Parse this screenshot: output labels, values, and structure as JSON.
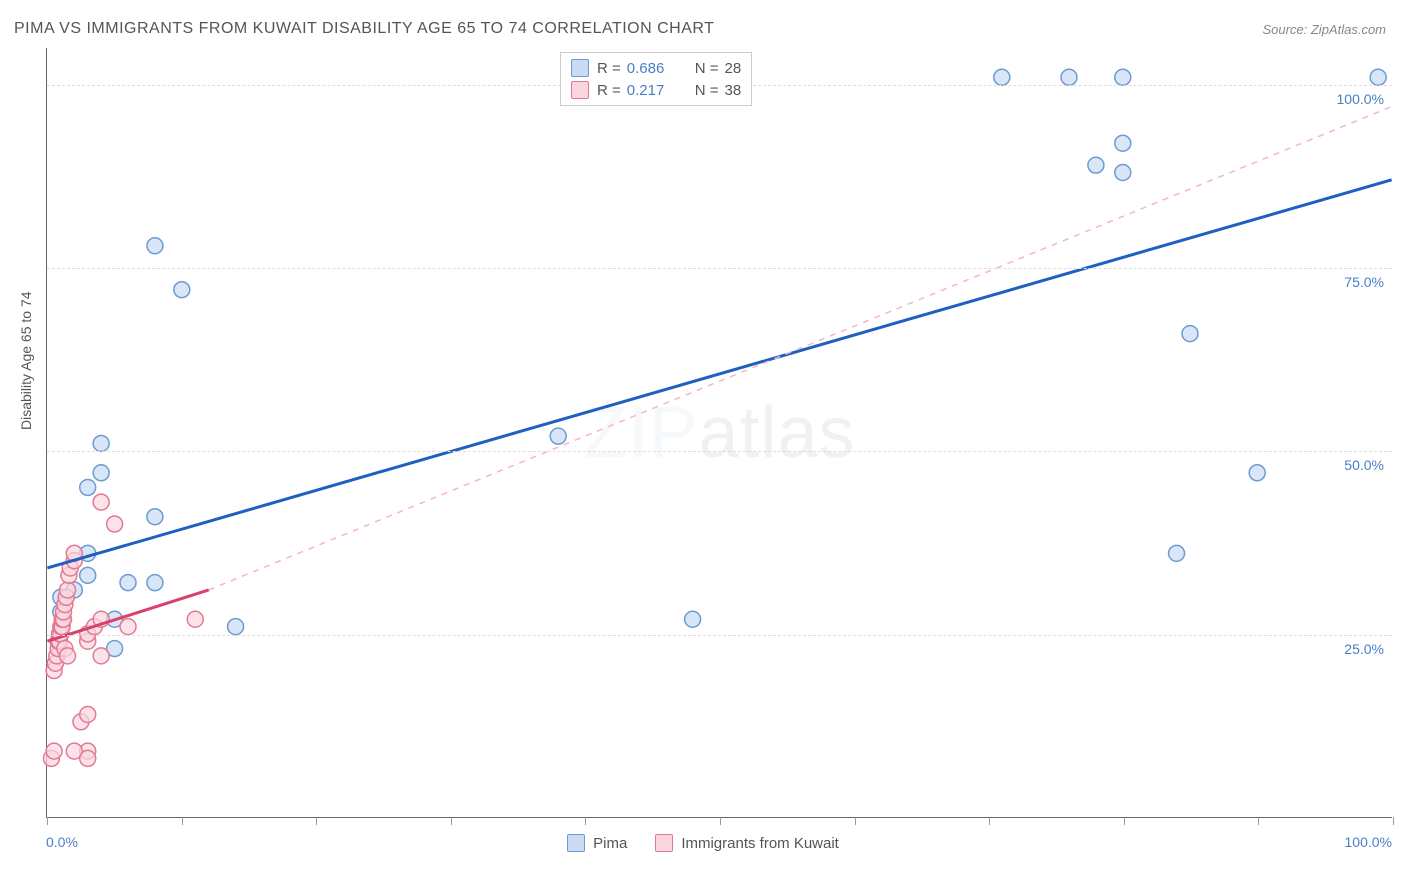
{
  "title": "PIMA VS IMMIGRANTS FROM KUWAIT DISABILITY AGE 65 TO 74 CORRELATION CHART",
  "source": "Source: ZipAtlas.com",
  "ylabel": "Disability Age 65 to 74",
  "watermark_zip": "ZIP",
  "watermark_atlas": "atlas",
  "chart": {
    "type": "scatter",
    "xlim": [
      0,
      100
    ],
    "ylim": [
      0,
      105
    ],
    "x_ticks": [
      0,
      10,
      20,
      30,
      40,
      50,
      60,
      70,
      80,
      90,
      100
    ],
    "y_gridlines": [
      25,
      50,
      75,
      100
    ],
    "y_tick_labels": [
      "25.0%",
      "50.0%",
      "75.0%",
      "100.0%"
    ],
    "x_min_label": "0.0%",
    "x_max_label": "100.0%",
    "background_color": "#ffffff",
    "grid_color": "#dddddd",
    "series": [
      {
        "name": "Pima",
        "R": "0.686",
        "N": "28",
        "marker_fill": "#c9dcf3",
        "marker_stroke": "#6b9bd1",
        "marker_radius": 8,
        "line_color": "#1f5fbf",
        "line_width": 3,
        "line_style": "solid",
        "regression": {
          "x1": 0,
          "y1": 34,
          "x2": 100,
          "y2": 87
        },
        "extrapolation": null,
        "points": [
          [
            1,
            28
          ],
          [
            1,
            30
          ],
          [
            2,
            31
          ],
          [
            3,
            33
          ],
          [
            3,
            36
          ],
          [
            3,
            45
          ],
          [
            4,
            47
          ],
          [
            4,
            51
          ],
          [
            5,
            23
          ],
          [
            5,
            27
          ],
          [
            6,
            32
          ],
          [
            8,
            32
          ],
          [
            8,
            41
          ],
          [
            14,
            26
          ],
          [
            8,
            78
          ],
          [
            10,
            72
          ],
          [
            38,
            52
          ],
          [
            48,
            27
          ],
          [
            71,
            101
          ],
          [
            76,
            101
          ],
          [
            78,
            89
          ],
          [
            80,
            101
          ],
          [
            80,
            88
          ],
          [
            80,
            92
          ],
          [
            85,
            66
          ],
          [
            84,
            36
          ],
          [
            90,
            47
          ],
          [
            99,
            101
          ]
        ]
      },
      {
        "name": "Immigrants from Kuwait",
        "R": "0.217",
        "N": "38",
        "marker_fill": "#fad7e0",
        "marker_stroke": "#e47893",
        "marker_radius": 8,
        "line_color": "#d9416b",
        "line_width": 3,
        "line_style": "solid",
        "regression": {
          "x1": 0,
          "y1": 24,
          "x2": 12,
          "y2": 31
        },
        "extrapolation": {
          "x1": 12,
          "y1": 31,
          "x2": 100,
          "y2": 97,
          "dash": "6,6",
          "color": "#f4b6c6",
          "width": 1.5
        },
        "points": [
          [
            0.3,
            8
          ],
          [
            0.5,
            9
          ],
          [
            0.5,
            20
          ],
          [
            0.6,
            21
          ],
          [
            0.7,
            22
          ],
          [
            0.8,
            23
          ],
          [
            0.8,
            24
          ],
          [
            0.9,
            24
          ],
          [
            0.9,
            25
          ],
          [
            1.0,
            25
          ],
          [
            1.0,
            26
          ],
          [
            1.1,
            26
          ],
          [
            1.1,
            27
          ],
          [
            1.2,
            27
          ],
          [
            1.2,
            28
          ],
          [
            1.3,
            23
          ],
          [
            1.3,
            29
          ],
          [
            1.4,
            30
          ],
          [
            1.5,
            31
          ],
          [
            1.5,
            22
          ],
          [
            1.6,
            33
          ],
          [
            1.7,
            34
          ],
          [
            2,
            35
          ],
          [
            2,
            36
          ],
          [
            2.5,
            13
          ],
          [
            3,
            14
          ],
          [
            3,
            24
          ],
          [
            3,
            25
          ],
          [
            3.5,
            26
          ],
          [
            4,
            22
          ],
          [
            4,
            27
          ],
          [
            4,
            43
          ],
          [
            5,
            40
          ],
          [
            6,
            26
          ],
          [
            11,
            27
          ],
          [
            3,
            9
          ],
          [
            2,
            9
          ],
          [
            3,
            8
          ]
        ]
      }
    ]
  },
  "legend_series": [
    {
      "label": "Pima",
      "fill": "#c9dcf3",
      "stroke": "#6b9bd1"
    },
    {
      "label": "Immigrants from Kuwait",
      "fill": "#fad7e0",
      "stroke": "#e47893"
    }
  ],
  "stat_legend": [
    {
      "fill": "#c9dcf3",
      "stroke": "#6b9bd1",
      "r_label": "R =",
      "r_value": "0.686",
      "n_label": "N =",
      "n_value": "28"
    },
    {
      "fill": "#fad7e0",
      "stroke": "#e47893",
      "r_label": "R =",
      "r_value": "0.217",
      "n_label": "N =",
      "n_value": "38"
    }
  ]
}
